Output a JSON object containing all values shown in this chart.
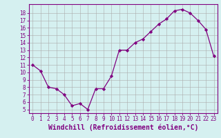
{
  "x": [
    0,
    1,
    2,
    3,
    4,
    5,
    6,
    7,
    8,
    9,
    10,
    11,
    12,
    13,
    14,
    15,
    16,
    17,
    18,
    19,
    20,
    21,
    22,
    23
  ],
  "y": [
    11,
    10.2,
    8,
    7.8,
    7,
    5.5,
    5.8,
    5,
    7.8,
    7.8,
    9.5,
    13,
    13,
    14,
    14.5,
    15.5,
    16.5,
    17.2,
    18.3,
    18.5,
    18,
    17,
    15.8,
    12.2
  ],
  "line_color": "#800080",
  "marker_color": "#800080",
  "bg_color": "#d5f0f0",
  "grid_color": "#aaaaaa",
  "xlabel": "Windchill (Refroidissement éolien,°C)",
  "xlim": [
    -0.5,
    23.5
  ],
  "ylim": [
    4.5,
    19.2
  ],
  "yticks": [
    5,
    6,
    7,
    8,
    9,
    10,
    11,
    12,
    13,
    14,
    15,
    16,
    17,
    18
  ],
  "xticks": [
    0,
    1,
    2,
    3,
    4,
    5,
    6,
    7,
    8,
    9,
    10,
    11,
    12,
    13,
    14,
    15,
    16,
    17,
    18,
    19,
    20,
    21,
    22,
    23
  ],
  "tick_fontsize": 5.5,
  "label_fontsize": 7.0
}
